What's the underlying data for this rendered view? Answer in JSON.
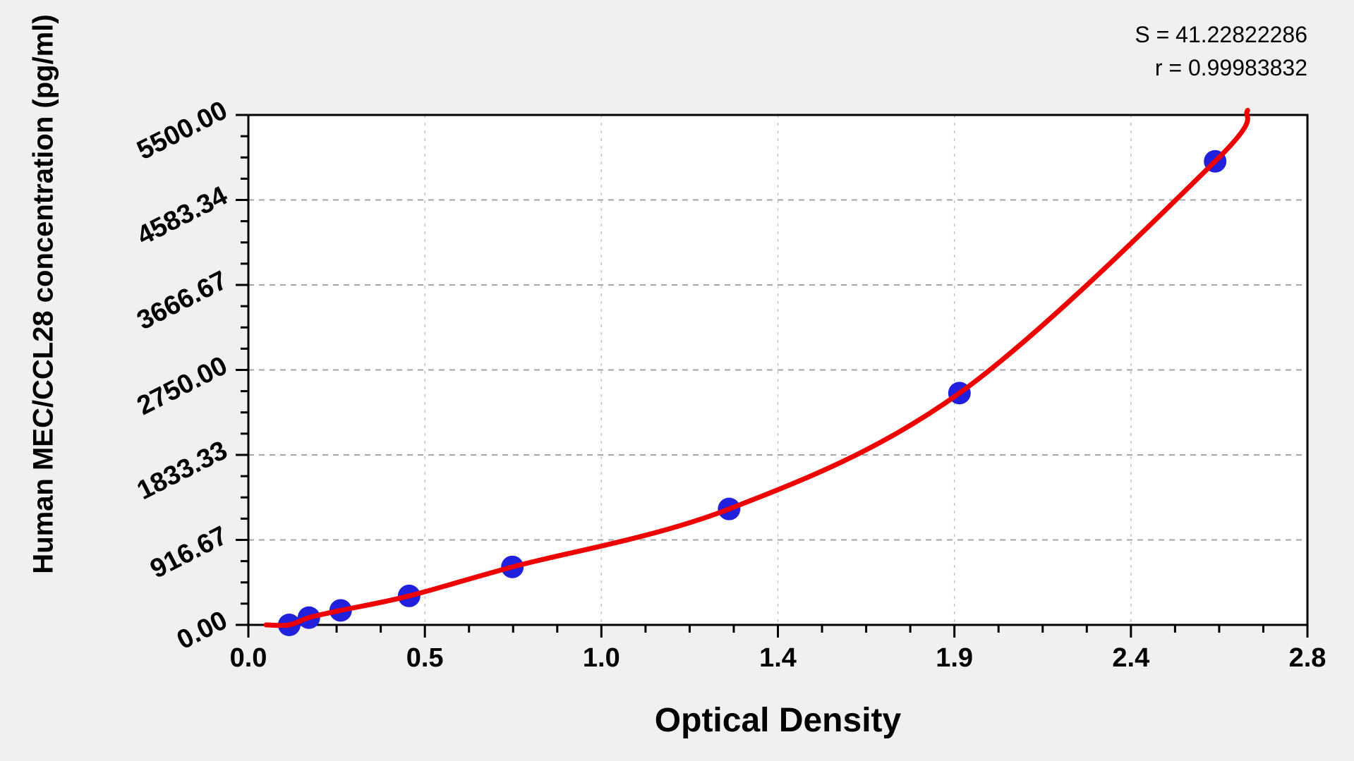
{
  "window": {
    "background": "#f0f0f0",
    "plot_background": "#ffffff"
  },
  "annotation": {
    "s_label": "S = 41.22822286",
    "r_label": "r = 0.99983832"
  },
  "chart_data": {
    "type": "scatter",
    "title": "",
    "xlabel": "Optical Density",
    "ylabel": "Human MEC/CCL28 concentration (pg/ml)",
    "xlim": [
      0,
      2.8
    ],
    "ylim": [
      0,
      5500
    ],
    "x_tick_labels": [
      "0.0",
      "0.5",
      "1.0",
      "1.4",
      "1.9",
      "2.4",
      "2.8"
    ],
    "y_tick_labels": [
      "0.00",
      "916.67",
      "1833.33",
      "2750.00",
      "3666.67",
      "4583.34",
      "5500.00"
    ],
    "minor_divisions": 4,
    "grid": "dashed lines at major ticks",
    "legend": null,
    "series": [
      {
        "name": "standard-points",
        "type": "scatter",
        "points": [
          {
            "od": 0.108,
            "conc": 0
          },
          {
            "od": 0.16,
            "conc": 78.125
          },
          {
            "od": 0.244,
            "conc": 156.25
          },
          {
            "od": 0.425,
            "conc": 312.5
          },
          {
            "od": 0.698,
            "conc": 625
          },
          {
            "od": 1.271,
            "conc": 1250
          },
          {
            "od": 1.88,
            "conc": 2500
          },
          {
            "od": 2.556,
            "conc": 5000
          }
        ]
      },
      {
        "name": "fit-curve",
        "type": "line",
        "S": 41.22822286,
        "r": 0.99983832,
        "start": {
          "od": 0.047,
          "conc": 0
        },
        "end": {
          "od": 2.642,
          "conc": 5550
        }
      }
    ],
    "colors": {
      "curve": "#ee0000",
      "point": "#2121dd",
      "grid_h": "#a6a6a6",
      "grid_v": "#c3c3c3",
      "axis": "#000000"
    }
  }
}
